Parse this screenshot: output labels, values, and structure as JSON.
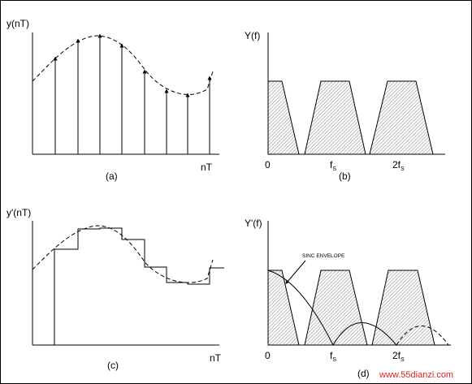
{
  "panel_a": {
    "ylabel": "y(nT)",
    "xlabel": "nT",
    "caption": "(a)"
  },
  "panel_b": {
    "ylabel": "Y(f)",
    "x0": "0",
    "fs": "f",
    "fs_sub": "S",
    "two_fs": "2f",
    "two_fs_sub": "S",
    "caption": "(b)"
  },
  "panel_c": {
    "ylabel": "y'(nT)",
    "xlabel": "nT",
    "caption": "(c)"
  },
  "panel_d": {
    "ylabel": "Y'(f)",
    "annotation": "SINC ENVELOPE",
    "x0": "0",
    "fs": "f",
    "fs_sub": "S",
    "two_fs": "2f",
    "two_fs_sub": "S",
    "caption": "(d)"
  },
  "watermark": "www.55dianzi.com",
  "colors": {
    "stroke": "#000000",
    "hatch": "#9a9a9a",
    "watermark": "#e0201c"
  }
}
